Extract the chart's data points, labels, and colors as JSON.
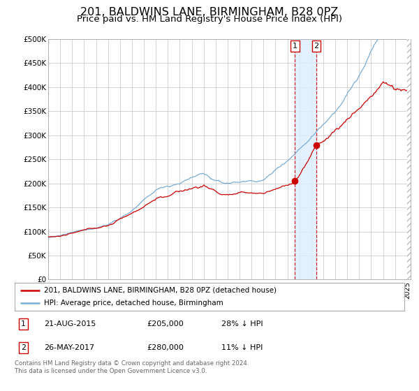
{
  "title": "201, BALDWINS LANE, BIRMINGHAM, B28 0PZ",
  "subtitle": "Price paid vs. HM Land Registry's House Price Index (HPI)",
  "title_fontsize": 11.5,
  "subtitle_fontsize": 9.5,
  "hpi_color": "#7aadd4",
  "price_color": "#cc0000",
  "background_color": "#ffffff",
  "grid_color": "#cccccc",
  "ylim": [
    0,
    500000
  ],
  "yticks": [
    0,
    50000,
    100000,
    150000,
    200000,
    250000,
    300000,
    350000,
    400000,
    450000,
    500000
  ],
  "ytick_labels": [
    "£0",
    "£50K",
    "£100K",
    "£150K",
    "£200K",
    "£250K",
    "£300K",
    "£350K",
    "£400K",
    "£450K",
    "£500K"
  ],
  "sale1_price": 205000,
  "sale1_year": 2015.636,
  "sale1_date_str": "21-AUG-2015",
  "sale1_pct": "28% ↓ HPI",
  "sale2_price": 280000,
  "sale2_year": 2017.411,
  "sale2_date_str": "26-MAY-2017",
  "sale2_pct": "11% ↓ HPI",
  "legend_line1": "201, BALDWINS LANE, BIRMINGHAM, B28 0PZ (detached house)",
  "legend_line2": "HPI: Average price, detached house, Birmingham",
  "footer": "Contains HM Land Registry data © Crown copyright and database right 2024.\nThis data is licensed under the Open Government Licence v3.0.",
  "xlim_start": 1995.0,
  "xlim_end": 2025.3
}
